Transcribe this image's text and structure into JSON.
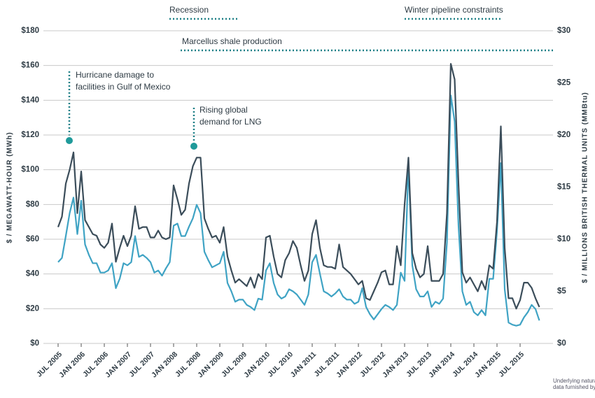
{
  "chart_data": {
    "type": "line",
    "y_label": "$ / MEGAWATT-HOUR (MWh)",
    "y2_label": "$ / MILLIONS BRITISH THERMAL UNITS (MMBtu)",
    "annotations": [
      "Recession",
      "Winter pipeline constraints",
      "Marcellus shale production",
      "Hurricane damage to",
      "facilities in Gulf of Mexico",
      "Rising global",
      "demand for LNG"
    ],
    "note": [
      "Underlying natural",
      "data furnished by"
    ],
    "x": [
      "2005-07",
      "2005-08",
      "2005-09",
      "2005-10",
      "2005-11",
      "2005-12",
      "2006-01",
      "2006-02",
      "2006-03",
      "2006-04",
      "2006-05",
      "2006-06",
      "2006-07",
      "2006-08",
      "2006-09",
      "2006-10",
      "2006-11",
      "2006-12",
      "2007-01",
      "2007-02",
      "2007-03",
      "2007-04",
      "2007-05",
      "2007-06",
      "2007-07",
      "2007-08",
      "2007-09",
      "2007-10",
      "2007-11",
      "2007-12",
      "2008-01",
      "2008-02",
      "2008-03",
      "2008-04",
      "2008-05",
      "2008-06",
      "2008-07",
      "2008-08",
      "2008-09",
      "2008-10",
      "2008-11",
      "2008-12",
      "2009-01",
      "2009-02",
      "2009-03",
      "2009-04",
      "2009-05",
      "2009-06",
      "2009-07",
      "2009-08",
      "2009-09",
      "2009-10",
      "2009-11",
      "2009-12",
      "2010-01",
      "2010-02",
      "2010-03",
      "2010-04",
      "2010-05",
      "2010-06",
      "2010-07",
      "2010-08",
      "2010-09",
      "2010-10",
      "2010-11",
      "2010-12",
      "2011-01",
      "2011-02",
      "2011-03",
      "2011-04",
      "2011-05",
      "2011-06",
      "2011-07",
      "2011-08",
      "2011-09",
      "2011-10",
      "2011-11",
      "2011-12",
      "2012-01",
      "2012-02",
      "2012-03",
      "2012-04",
      "2012-05",
      "2012-06",
      "2012-07",
      "2012-08",
      "2012-09",
      "2012-10",
      "2012-11",
      "2012-12",
      "2013-01",
      "2013-02",
      "2013-03",
      "2013-04",
      "2013-05",
      "2013-06",
      "2013-07",
      "2013-08",
      "2013-09",
      "2013-10",
      "2013-11",
      "2013-12",
      "2014-01",
      "2014-02",
      "2014-03",
      "2014-04",
      "2014-05",
      "2014-06",
      "2014-07",
      "2014-08",
      "2014-09",
      "2014-10",
      "2014-11",
      "2014-12",
      "2015-01",
      "2015-02",
      "2015-03",
      "2015-04",
      "2015-05",
      "2015-06",
      "2015-07",
      "2015-08",
      "2015-09",
      "2015-10",
      "2015-11",
      "2015-12"
    ],
    "xticks": [
      {
        "value": "2005-07",
        "label": "JUL 2005"
      },
      {
        "value": "2006-01",
        "label": "JAN 2006"
      },
      {
        "value": "2006-07",
        "label": "JUL 2006"
      },
      {
        "value": "2007-01",
        "label": "JAN 2007"
      },
      {
        "value": "2007-07",
        "label": "JUL 2007"
      },
      {
        "value": "2008-01",
        "label": "JAN 2008"
      },
      {
        "value": "2008-07",
        "label": "JUL 2008"
      },
      {
        "value": "2009-01",
        "label": "JAN 2009"
      },
      {
        "value": "2009-07",
        "label": "JUL 2009"
      },
      {
        "value": "2010-01",
        "label": "JAN 2010"
      },
      {
        "value": "2010-07",
        "label": "JUL 2010"
      },
      {
        "value": "2011-01",
        "label": "JAN 2011"
      },
      {
        "value": "2011-07",
        "label": "JUL 2011"
      },
      {
        "value": "2012-01",
        "label": "JAN 2012"
      },
      {
        "value": "2012-07",
        "label": "JUL 2012"
      },
      {
        "value": "2013-01",
        "label": "JAN 2013"
      },
      {
        "value": "2013-07",
        "label": "JUL 2013"
      },
      {
        "value": "2014-01",
        "label": "JAN 2014"
      },
      {
        "value": "2014-07",
        "label": "JUL 2014"
      },
      {
        "value": "2015-01",
        "label": "JAN 2015"
      },
      {
        "value": "2015-07",
        "label": "JUL 2015"
      }
    ],
    "ylim": [
      0,
      180
    ],
    "yticks": [
      {
        "value": 0,
        "label": "$0"
      },
      {
        "value": 20,
        "label": "$20"
      },
      {
        "value": 40,
        "label": "$40"
      },
      {
        "value": 60,
        "label": "$60"
      },
      {
        "value": 80,
        "label": "$80"
      },
      {
        "value": 100,
        "label": "$100"
      },
      {
        "value": 120,
        "label": "$120"
      },
      {
        "value": 140,
        "label": "$140"
      },
      {
        "value": 160,
        "label": "$160"
      },
      {
        "value": 180,
        "label": "$180"
      }
    ],
    "y2lim": [
      0,
      30
    ],
    "y2ticks": [
      {
        "value": 0,
        "label": "$0"
      },
      {
        "value": 5,
        "label": "$5"
      },
      {
        "value": 10,
        "label": "$10"
      },
      {
        "value": 15,
        "label": "$15"
      },
      {
        "value": 20,
        "label": "$20"
      },
      {
        "value": 25,
        "label": "$25"
      },
      {
        "value": 30,
        "label": "$30"
      }
    ],
    "grid": true,
    "series": [
      {
        "color": "#3b4d5a",
        "values": [
          67,
          73,
          92,
          100,
          110,
          75,
          99,
          71,
          67,
          63,
          62,
          57,
          55,
          58,
          69,
          47,
          55,
          62,
          56,
          62,
          79,
          66,
          67,
          67,
          61,
          61,
          65,
          61,
          60,
          61,
          91,
          83,
          74,
          77,
          92,
          102,
          107,
          107,
          72,
          66,
          61,
          62,
          58,
          67,
          50,
          42,
          35,
          37,
          35,
          33,
          38,
          32,
          40,
          37,
          61,
          62,
          50,
          40,
          38,
          48,
          52,
          59,
          55,
          45,
          36,
          42,
          63,
          71,
          55,
          45,
          44,
          44,
          43,
          57,
          44,
          42,
          40,
          37,
          34,
          36,
          26,
          25,
          30,
          35,
          41,
          42,
          34,
          34,
          56,
          45,
          80,
          107,
          52,
          43,
          38,
          40,
          56,
          36,
          36,
          36,
          40,
          75,
          161,
          152,
          92,
          41,
          35,
          38,
          34,
          30,
          36,
          31,
          45,
          43,
          70,
          125,
          55,
          26,
          26,
          20,
          25,
          35,
          35,
          32,
          26,
          21
        ]
      },
      {
        "color": "#3fa3c4",
        "axis": "y2",
        "values": [
          7.8,
          8.2,
          10.3,
          12.5,
          14,
          10.5,
          13.7,
          9.5,
          8.5,
          7.7,
          7.7,
          6.8,
          6.8,
          7,
          7.7,
          5.3,
          6.2,
          7.7,
          7.5,
          7.8,
          10.3,
          8.3,
          8.5,
          8.2,
          7.8,
          6.8,
          7,
          6.5,
          7.2,
          7.8,
          11.3,
          11.5,
          10.3,
          10.3,
          11.2,
          12,
          13.3,
          12.5,
          8.8,
          8,
          7.3,
          7.5,
          7.7,
          8.8,
          5.8,
          5,
          4,
          4.2,
          4.2,
          3.7,
          3.5,
          3.2,
          4.3,
          4.2,
          7,
          7.7,
          5.8,
          4.7,
          4.3,
          4.5,
          5.2,
          5,
          4.7,
          4.2,
          3.7,
          4.7,
          7.8,
          8.5,
          6.7,
          5,
          4.8,
          4.5,
          4.8,
          5.2,
          4.5,
          4.2,
          4.2,
          3.8,
          4,
          5.3,
          3.5,
          2.8,
          2.3,
          2.8,
          3.3,
          3.7,
          3.5,
          3.2,
          3.7,
          6.8,
          6,
          17.2,
          7.5,
          5.2,
          4.5,
          4.5,
          5,
          3.5,
          4,
          3.8,
          4.3,
          9.7,
          23.8,
          21.3,
          11.3,
          5,
          3.7,
          4,
          3,
          2.7,
          3.2,
          2.7,
          6.2,
          6.2,
          10.8,
          17.3,
          5.2,
          2,
          1.8,
          1.7,
          1.8,
          2.5,
          3,
          3.7,
          3.3,
          2.2
        ]
      }
    ]
  }
}
